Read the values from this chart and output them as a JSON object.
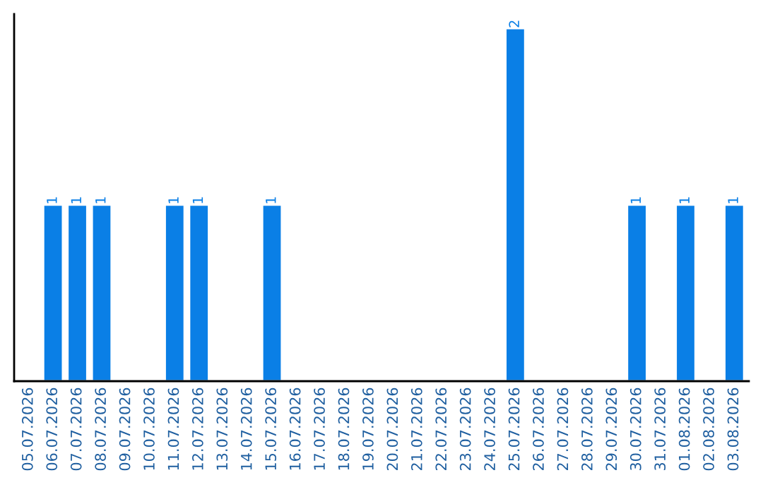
{
  "chart_data": {
    "type": "bar",
    "categories": [
      "05.07.2026",
      "06.07.2026",
      "07.07.2026",
      "08.07.2026",
      "09.07.2026",
      "10.07.2026",
      "11.07.2026",
      "12.07.2026",
      "13.07.2026",
      "14.07.2026",
      "15.07.2026",
      "16.07.2026",
      "17.07.2026",
      "18.07.2026",
      "19.07.2026",
      "20.07.2026",
      "21.07.2026",
      "22.07.2026",
      "23.07.2026",
      "24.07.2026",
      "25.07.2026",
      "26.07.2026",
      "27.07.2026",
      "28.07.2026",
      "29.07.2026",
      "30.07.2026",
      "31.07.2026",
      "01.08.2026",
      "02.08.2026",
      "03.08.2026"
    ],
    "values": [
      0,
      1,
      1,
      1,
      0,
      0,
      1,
      1,
      0,
      0,
      1,
      0,
      0,
      0,
      0,
      0,
      0,
      0,
      0,
      0,
      2,
      0,
      0,
      0,
      0,
      1,
      0,
      1,
      0,
      1
    ],
    "value_labels": [
      null,
      "1",
      "1",
      "1",
      null,
      null,
      "1",
      "1",
      null,
      null,
      "1",
      null,
      null,
      null,
      null,
      null,
      null,
      null,
      null,
      null,
      "2",
      null,
      null,
      null,
      null,
      "1",
      null,
      "1",
      null,
      "1"
    ],
    "color": "#0a7fe6"
  }
}
